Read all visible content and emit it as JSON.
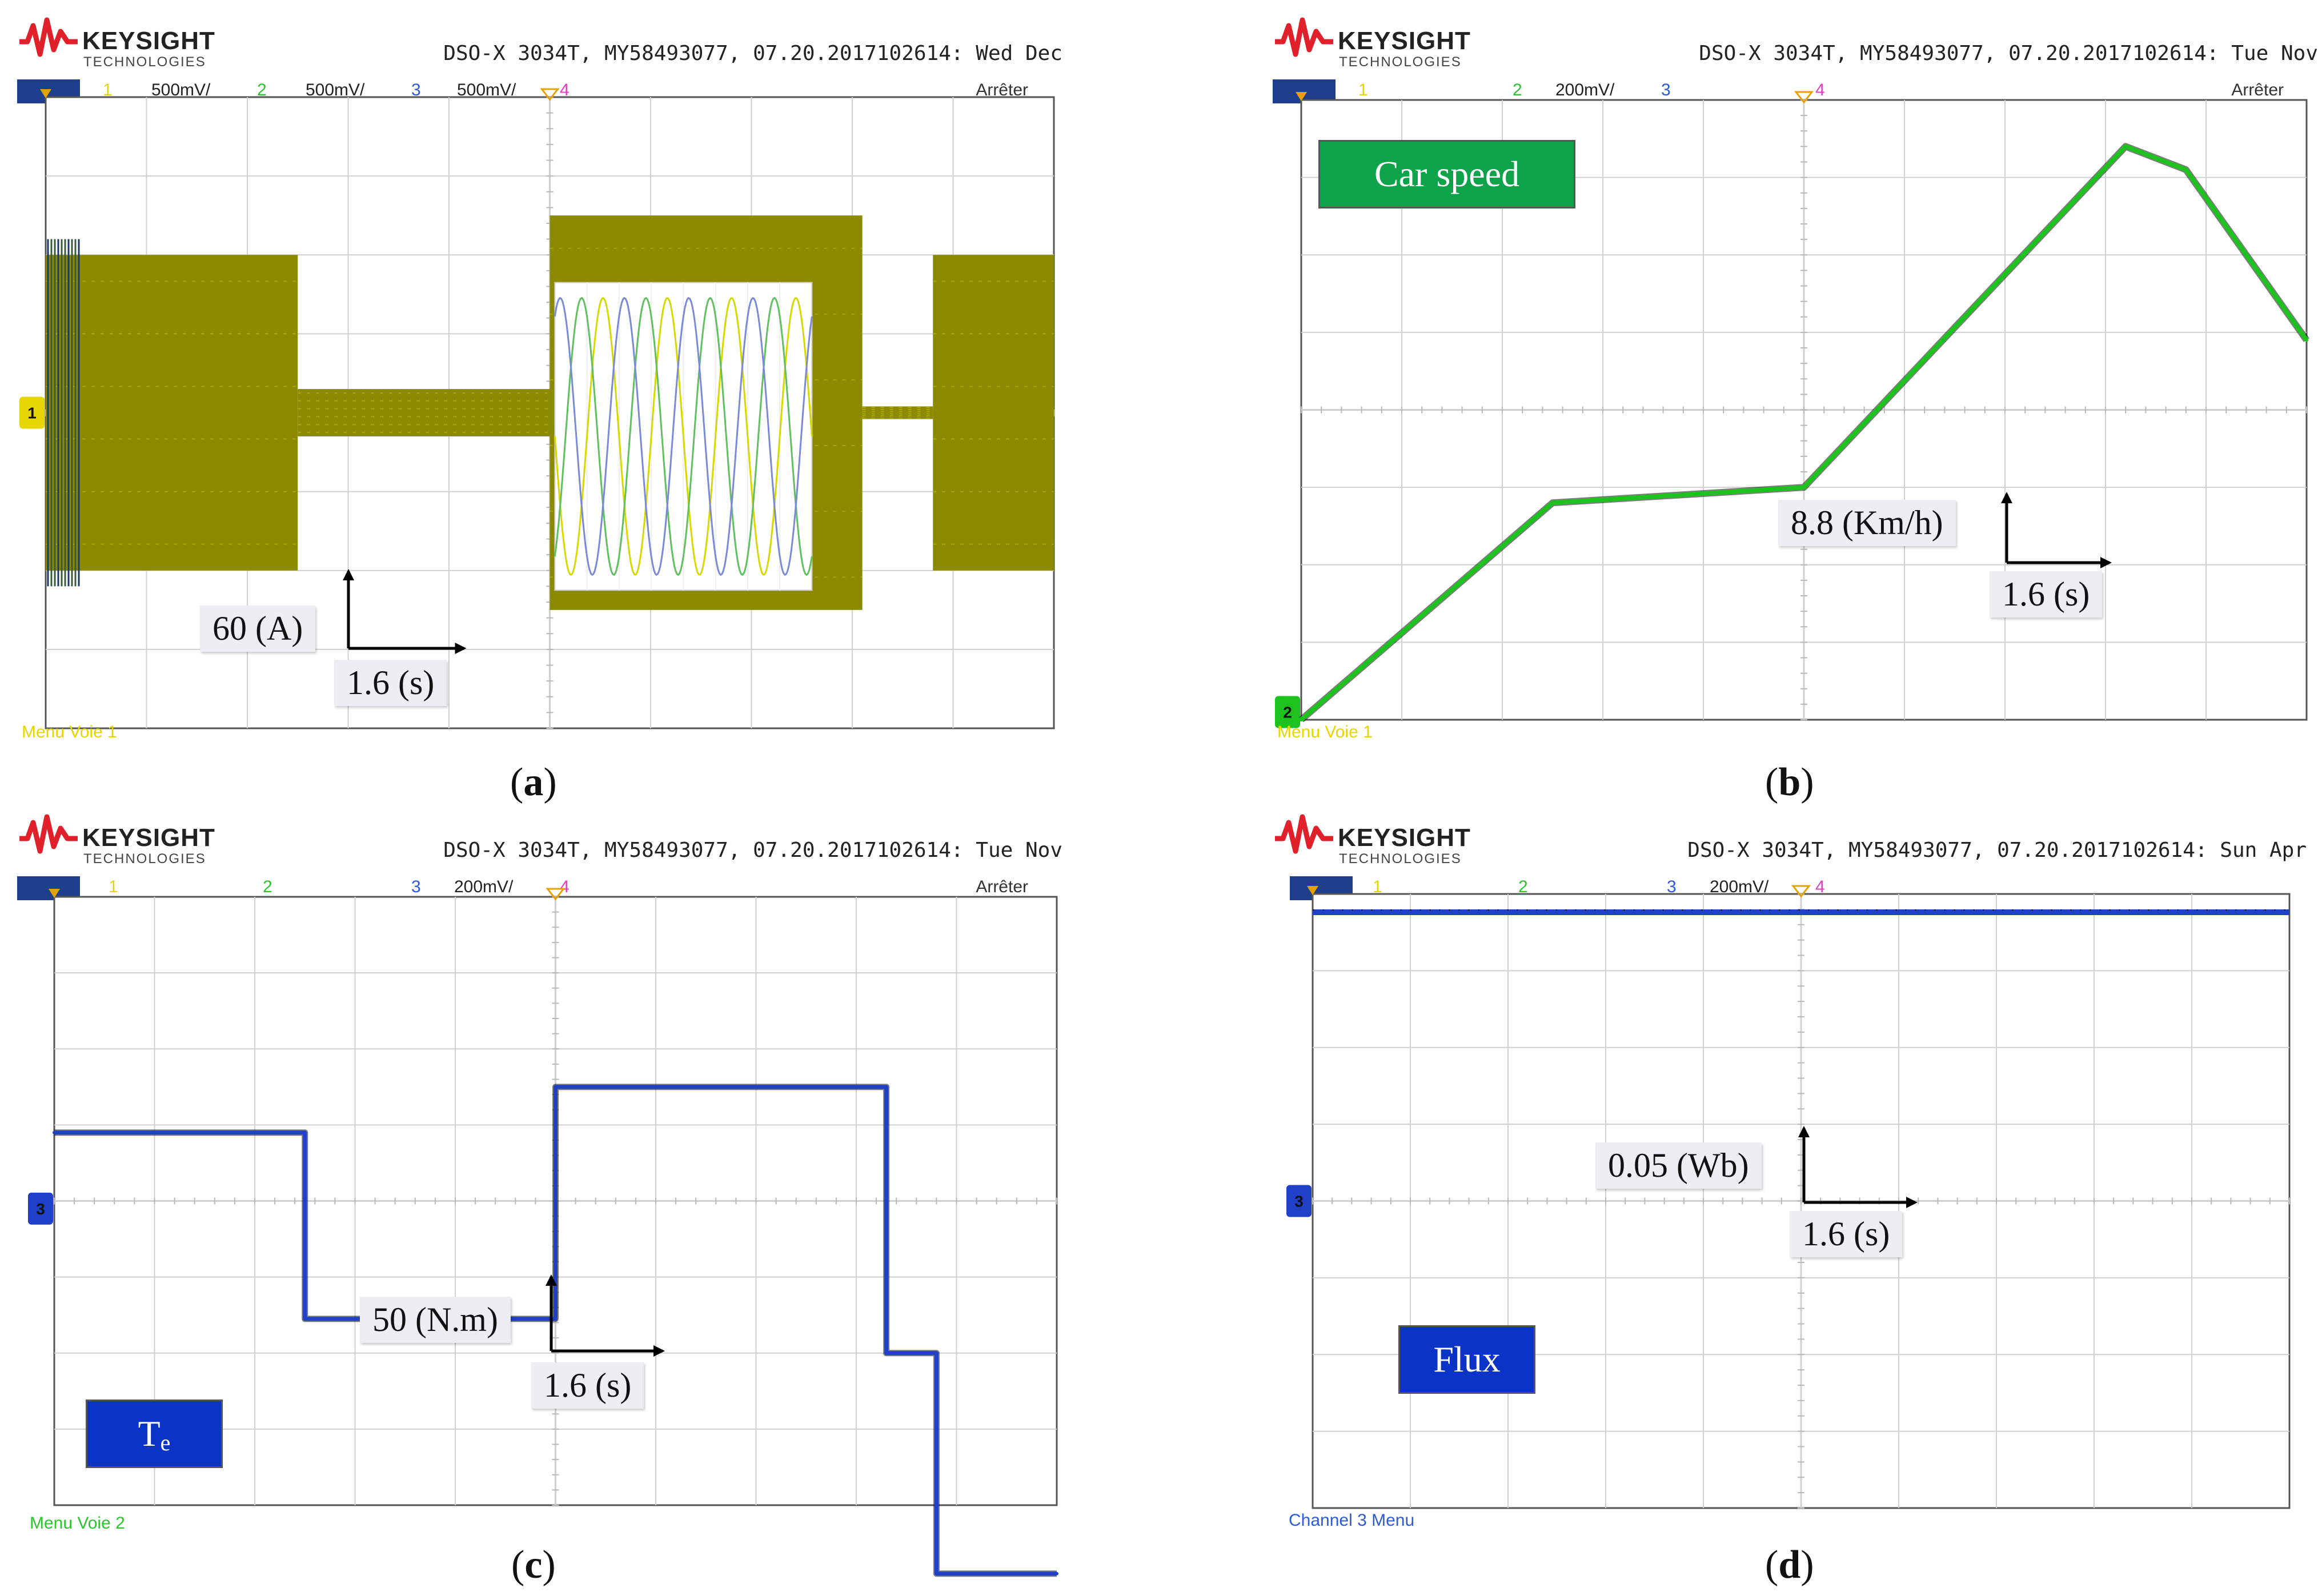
{
  "scope": {
    "brand": "KEYSIGHT",
    "brand_sub": "TECHNOLOGIES",
    "model_prefix": "DSO-X 3034T, MY58493077, 07.20.2017102614:",
    "stopped": "Arrêter",
    "channel_numbers": [
      "1",
      "2",
      "3",
      "4"
    ]
  },
  "panels": [
    {
      "id": "a",
      "caption_letter": "a",
      "date_text": "Wed Dec",
      "channels": [
        {
          "num": "1",
          "scale": "500mV/",
          "color": "#e6d600"
        },
        {
          "num": "2",
          "scale": "500mV/",
          "color": "#2ec42e"
        },
        {
          "num": "3",
          "scale": "500mV/",
          "color": "#2d5bd8"
        },
        {
          "num": "4",
          "scale": "",
          "color": "#e040c0"
        }
      ],
      "menu_text": "Menu Voie 1",
      "menu_color": "#e6d600",
      "ground_marker": "1",
      "y_scale_label": "60 (A)",
      "x_scale_label": "1.6 (s)"
    },
    {
      "id": "b",
      "caption_letter": "b",
      "date_text": "Tue Nov",
      "channels": [
        {
          "num": "1",
          "scale": "",
          "color": "#e6d600"
        },
        {
          "num": "2",
          "scale": "200mV/",
          "color": "#2ec42e"
        },
        {
          "num": "3",
          "scale": "",
          "color": "#2d5bd8"
        },
        {
          "num": "4",
          "scale": "",
          "color": "#e040c0"
        }
      ],
      "menu_text": "Menu Voie 1",
      "menu_color": "#e6d600",
      "ground_marker": "2",
      "tag": "Car speed",
      "tag_color": "#0ca34a",
      "y_scale_label": "8.8 (Km/h)",
      "x_scale_label": "1.6 (s)"
    },
    {
      "id": "c",
      "caption_letter": "c",
      "date_text": "Tue Nov",
      "channels": [
        {
          "num": "1",
          "scale": "",
          "color": "#e6d600"
        },
        {
          "num": "2",
          "scale": "",
          "color": "#2ec42e"
        },
        {
          "num": "3",
          "scale": "200mV/",
          "color": "#2d5bd8"
        },
        {
          "num": "4",
          "scale": "",
          "color": "#e040c0"
        }
      ],
      "menu_text": "Menu Voie 2",
      "menu_color": "#2ec42e",
      "ground_marker": "3",
      "tag": "T",
      "tag_sub": "e",
      "tag_color": "#0a33c8",
      "y_scale_label": "50 (N.m)",
      "x_scale_label": "1.6 (s)"
    },
    {
      "id": "d",
      "caption_letter": "d",
      "date_text": "Sun Apr",
      "channels": [
        {
          "num": "1",
          "scale": "",
          "color": "#e6d600"
        },
        {
          "num": "2",
          "scale": "",
          "color": "#2ec42e"
        },
        {
          "num": "3",
          "scale": "200mV/",
          "color": "#2d5bd8"
        },
        {
          "num": "4",
          "scale": "",
          "color": "#e040c0"
        }
      ],
      "menu_text": "Channel 3 Menu",
      "menu_color": "#2d5bd8",
      "ground_marker": "3",
      "tag": "Flux",
      "tag_color": "#0a33c8",
      "y_scale_label": "0.05 (Wb)",
      "x_scale_label": "1.6 (s)"
    }
  ],
  "chart_data": [
    {
      "type": "line",
      "panel": "a",
      "series": [
        {
          "description_color": "#8c8a00",
          "envelope": true
        }
      ],
      "x_units": "1.6 s per division",
      "y_units": "60 A per division",
      "divisions": {
        "x": 10,
        "y": 8
      },
      "segments": [
        {
          "t_start_div": 0.0,
          "t_end_div": 2.5,
          "amplitude_div": 2.0
        },
        {
          "t_start_div": 2.5,
          "t_end_div": 5.0,
          "amplitude_div": 0.3
        },
        {
          "t_start_div": 5.0,
          "t_end_div": 8.1,
          "amplitude_div": 2.5
        },
        {
          "t_start_div": 8.1,
          "t_end_div": 8.8,
          "amplitude_div": 0.08
        },
        {
          "t_start_div": 8.8,
          "t_end_div": 10.0,
          "amplitude_div": 2.0
        }
      ]
    },
    {
      "type": "line",
      "panel": "b",
      "series": [
        {
          "name": "Car speed",
          "color": "#1ec21e"
        }
      ],
      "x_div": [
        0.0,
        2.5,
        5.0,
        8.2,
        8.8,
        10.0
      ],
      "y_div": [
        0.0,
        2.8,
        3.0,
        7.4,
        7.1,
        4.9
      ],
      "x_units": "1.6 s per division",
      "y_units": "8.8 Km/h per division"
    },
    {
      "type": "line",
      "panel": "c",
      "series": [
        {
          "name": "Te",
          "color": "#2040c8"
        }
      ],
      "x_div": [
        0.0,
        2.5,
        2.5,
        5.0,
        5.0,
        8.3,
        8.3,
        8.8,
        8.8,
        10.0
      ],
      "y_div": [
        4.9,
        4.9,
        2.45,
        2.45,
        5.5,
        5.5,
        2.0,
        2.0,
        -0.9,
        -0.9
      ],
      "x_units": "1.6 s per division",
      "y_units": "50 N.m per division"
    },
    {
      "type": "line",
      "panel": "d",
      "series": [
        {
          "name": "Flux",
          "color": "#2040c8"
        }
      ],
      "x_div": [
        0.0,
        10.0
      ],
      "y_div": [
        3.5,
        3.5
      ],
      "x_units": "1.6 s per division",
      "y_units": "0.05 Wb per division"
    }
  ]
}
